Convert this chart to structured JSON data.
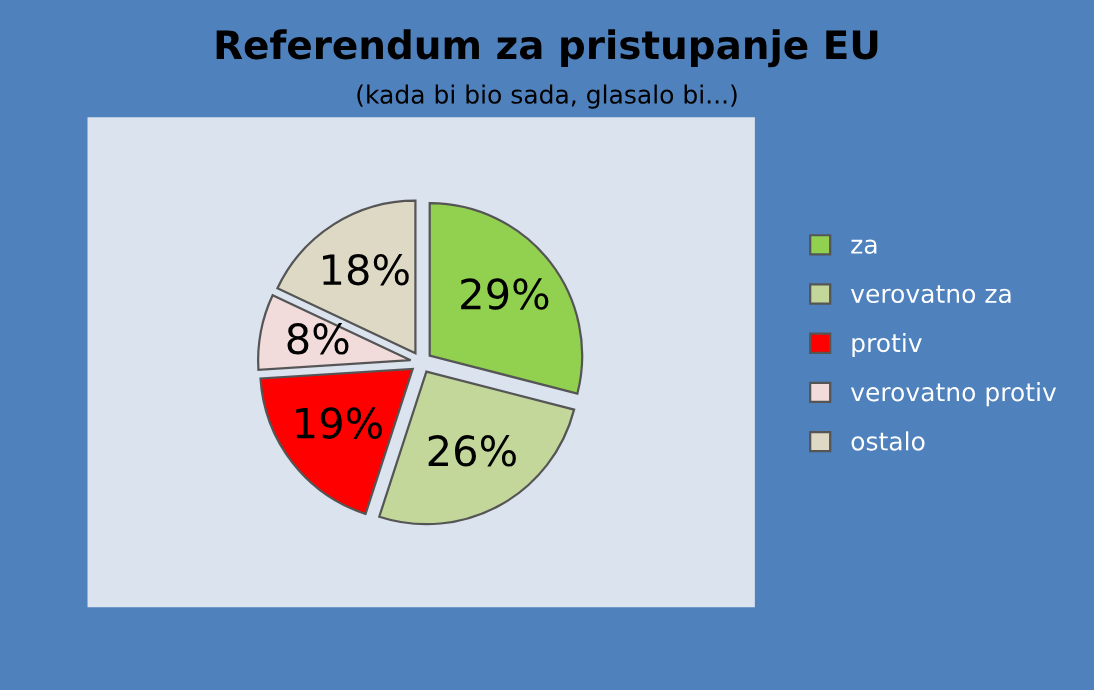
{
  "chart_data": {
    "type": "pie",
    "title": "Referendum za pristupanje EU",
    "subtitle": "(kada bi bio sada, glasalo bi...)",
    "categories": [
      "za",
      "verovatno za",
      "protiv",
      "verovatno protiv",
      "ostalo"
    ],
    "values": [
      29,
      26,
      19,
      8,
      18
    ],
    "value_labels": [
      "29%",
      "26%",
      "19%",
      "8%",
      "18%"
    ],
    "colors": [
      "#92d050",
      "#c4d79b",
      "#ff0000",
      "#f2dcdb",
      "#ddd9c4"
    ],
    "legend": "right"
  }
}
